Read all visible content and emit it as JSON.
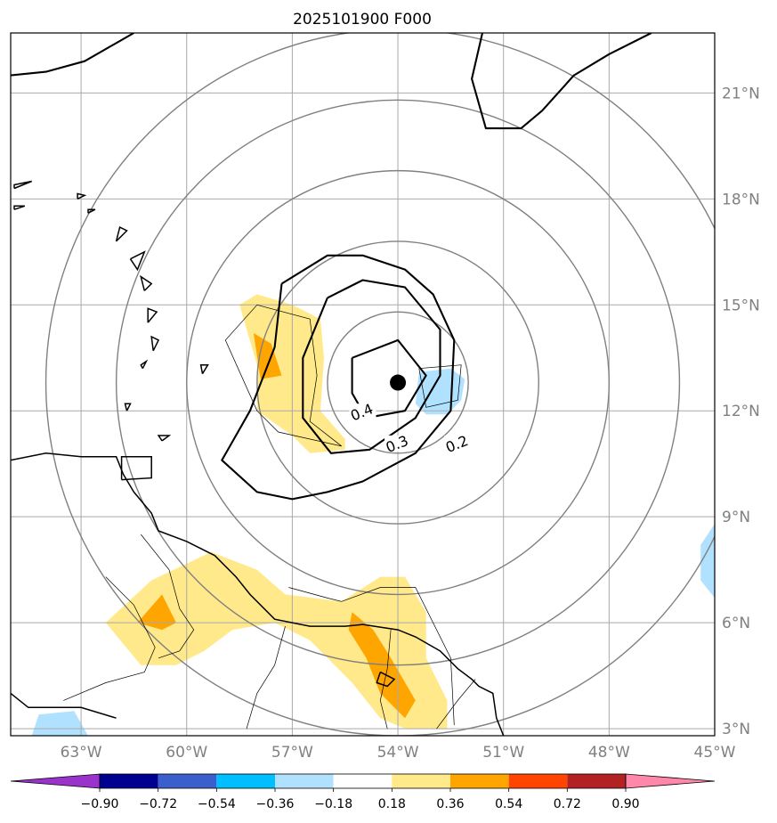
{
  "chart_data": {
    "type": "contour-map",
    "title": "2025101900 F000",
    "map": {
      "lon_range": [
        -65,
        -45
      ],
      "lat_range": [
        2.8,
        22.7
      ],
      "lon_ticks": [
        -63,
        -60,
        -57,
        -54,
        -51,
        -48,
        -45
      ],
      "lon_tick_labels": [
        "63°W",
        "60°W",
        "57°W",
        "54°W",
        "51°W",
        "48°W",
        "45°W"
      ],
      "lat_ticks": [
        3,
        6,
        9,
        12,
        15,
        18,
        21
      ],
      "lat_tick_labels": [
        "3°N",
        "6°N",
        "9°N",
        "12°N",
        "15°N",
        "18°N",
        "21°N"
      ],
      "grid": true,
      "center_marker": {
        "lon": -54.0,
        "lat": 12.8
      },
      "range_rings_deg": [
        2,
        4,
        6,
        8,
        10
      ]
    },
    "contour_lines": [
      {
        "label": "0.4",
        "label_at": [
          -55.0,
          11.9
        ],
        "points": [
          [
            -55.3,
            13.5
          ],
          [
            -54.0,
            14.0
          ],
          [
            -53.2,
            13.0
          ],
          [
            -53.8,
            12.0
          ],
          [
            -54.9,
            11.8
          ],
          [
            -55.3,
            12.5
          ],
          [
            -55.3,
            13.5
          ]
        ]
      },
      {
        "label": "0.3",
        "label_at": [
          -54.0,
          11.0
        ],
        "points": [
          [
            -56.0,
            15.2
          ],
          [
            -55.0,
            15.7
          ],
          [
            -53.8,
            15.5
          ],
          [
            -52.8,
            14.3
          ],
          [
            -52.8,
            13.0
          ],
          [
            -53.5,
            11.8
          ],
          [
            -54.8,
            10.9
          ],
          [
            -55.9,
            10.8
          ],
          [
            -56.7,
            11.8
          ],
          [
            -56.7,
            13.5
          ],
          [
            -56.0,
            15.2
          ]
        ]
      },
      {
        "label": "0.2",
        "label_at": [
          -52.3,
          11.0
        ],
        "points": [
          [
            -57.3,
            15.6
          ],
          [
            -56.0,
            16.4
          ],
          [
            -55.0,
            16.4
          ],
          [
            -53.8,
            16.0
          ],
          [
            -53.0,
            15.3
          ],
          [
            -52.4,
            14.0
          ],
          [
            -52.5,
            12.0
          ],
          [
            -53.5,
            10.8
          ],
          [
            -55.0,
            10.0
          ],
          [
            -56.0,
            9.7
          ],
          [
            -57.0,
            9.5
          ],
          [
            -58.0,
            9.7
          ],
          [
            -59.0,
            10.6
          ],
          [
            -58.2,
            12.0
          ],
          [
            -57.5,
            13.8
          ],
          [
            -57.3,
            15.6
          ]
        ]
      },
      {
        "label": "",
        "label_at": null,
        "points": [
          [
            -65.0,
            21.5
          ],
          [
            -64.0,
            21.6
          ],
          [
            -62.9,
            21.9
          ],
          [
            -61.5,
            22.7
          ]
        ]
      },
      {
        "label": "",
        "label_at": null,
        "points": [
          [
            -51.6,
            22.7
          ],
          [
            -51.9,
            21.4
          ],
          [
            -51.5,
            20.0
          ],
          [
            -50.5,
            20.0
          ],
          [
            -49.9,
            20.5
          ],
          [
            -49.0,
            21.5
          ],
          [
            -48.0,
            22.1
          ],
          [
            -46.8,
            22.7
          ]
        ]
      }
    ],
    "filled_regions": [
      {
        "range": [
          0.18,
          0.36
        ],
        "points": [
          [
            -58.0,
            15.3
          ],
          [
            -57.0,
            15.0
          ],
          [
            -56.2,
            14.6
          ],
          [
            -56.1,
            13.5
          ],
          [
            -56.2,
            12.0
          ],
          [
            -55.5,
            11.2
          ],
          [
            -55.5,
            10.9
          ],
          [
            -56.5,
            10.8
          ],
          [
            -57.0,
            11.3
          ],
          [
            -58.0,
            12.0
          ],
          [
            -58.0,
            13.3
          ],
          [
            -58.5,
            15.0
          ],
          [
            -58.0,
            15.3
          ]
        ]
      },
      {
        "range": [
          0.18,
          0.36
        ],
        "points": [
          [
            -62.3,
            6.0
          ],
          [
            -61.0,
            7.2
          ],
          [
            -59.3,
            8.0
          ],
          [
            -58.0,
            7.5
          ],
          [
            -57.2,
            6.8
          ],
          [
            -55.6,
            6.6
          ],
          [
            -54.5,
            7.3
          ],
          [
            -53.8,
            7.3
          ],
          [
            -53.2,
            6.3
          ],
          [
            -53.2,
            5.0
          ],
          [
            -52.6,
            3.8
          ],
          [
            -52.6,
            3.0
          ],
          [
            -53.8,
            3.0
          ],
          [
            -54.5,
            3.3
          ],
          [
            -55.3,
            4.3
          ],
          [
            -56.5,
            5.5
          ],
          [
            -57.5,
            6.0
          ],
          [
            -58.7,
            5.8
          ],
          [
            -59.5,
            5.2
          ],
          [
            -60.3,
            4.8
          ],
          [
            -61.3,
            4.8
          ],
          [
            -62.3,
            6.0
          ]
        ]
      },
      {
        "range": [
          0.36,
          0.54
        ],
        "points": [
          [
            -58.1,
            14.2
          ],
          [
            -57.6,
            13.9
          ],
          [
            -57.3,
            13.0
          ],
          [
            -57.9,
            12.9
          ],
          [
            -58.1,
            14.2
          ]
        ]
      },
      {
        "range": [
          0.36,
          0.54
        ],
        "points": [
          [
            -60.7,
            6.8
          ],
          [
            -60.3,
            6.0
          ],
          [
            -60.7,
            5.8
          ],
          [
            -61.4,
            6.0
          ],
          [
            -60.7,
            6.8
          ]
        ]
      },
      {
        "range": [
          0.36,
          0.54
        ],
        "points": [
          [
            -55.3,
            6.3
          ],
          [
            -54.7,
            5.8
          ],
          [
            -54.2,
            5.0
          ],
          [
            -53.5,
            3.8
          ],
          [
            -53.8,
            3.3
          ],
          [
            -54.5,
            4.0
          ],
          [
            -54.9,
            5.0
          ],
          [
            -55.4,
            5.8
          ],
          [
            -55.3,
            6.3
          ]
        ]
      },
      {
        "range": [
          -0.36,
          -0.18
        ],
        "points": [
          [
            -53.4,
            13.1
          ],
          [
            -52.5,
            13.2
          ],
          [
            -52.1,
            12.9
          ],
          [
            -52.2,
            12.3
          ],
          [
            -52.6,
            11.9
          ],
          [
            -53.2,
            11.9
          ],
          [
            -53.5,
            12.2
          ],
          [
            -53.4,
            13.1
          ]
        ]
      },
      {
        "range": [
          -0.36,
          -0.18
        ],
        "points": [
          [
            -45.0,
            8.8
          ],
          [
            -45.4,
            8.2
          ],
          [
            -45.4,
            7.2
          ],
          [
            -45.0,
            6.7
          ]
        ]
      },
      {
        "range": [
          -0.36,
          -0.18
        ],
        "points": [
          [
            -64.4,
            2.8
          ],
          [
            -64.2,
            3.4
          ],
          [
            -63.2,
            3.5
          ],
          [
            -62.8,
            2.8
          ]
        ]
      }
    ],
    "coastlines": [
      [
        [
          -65.0,
          10.6
        ],
        [
          -64.0,
          10.8
        ],
        [
          -63.0,
          10.7
        ],
        [
          -62.0,
          10.7
        ],
        [
          -61.8,
          10.2
        ],
        [
          -61.5,
          9.7
        ],
        [
          -61.0,
          9.1
        ],
        [
          -60.8,
          8.6
        ],
        [
          -60.0,
          8.3
        ],
        [
          -59.2,
          7.9
        ],
        [
          -58.6,
          7.3
        ],
        [
          -58.2,
          6.8
        ],
        [
          -57.5,
          6.1
        ],
        [
          -56.5,
          5.9
        ],
        [
          -55.5,
          5.9
        ],
        [
          -55.0,
          5.95
        ],
        [
          -54.0,
          5.8
        ],
        [
          -53.5,
          5.6
        ],
        [
          -52.8,
          5.2
        ],
        [
          -52.3,
          4.7
        ],
        [
          -51.9,
          4.4
        ],
        [
          -51.7,
          4.2
        ],
        [
          -51.3,
          4.0
        ],
        [
          -51.2,
          3.3
        ],
        [
          -51.0,
          2.8
        ]
      ],
      [
        [
          -65.0,
          4.0
        ],
        [
          -64.5,
          3.6
        ],
        [
          -63.0,
          3.6
        ],
        [
          -62.0,
          3.3
        ]
      ],
      [
        [
          -61.85,
          10.05
        ],
        [
          -61.0,
          10.1
        ],
        [
          -61.0,
          10.7
        ],
        [
          -61.85,
          10.7
        ],
        [
          -61.85,
          10.05
        ]
      ],
      [
        [
          -54.5,
          4.6
        ],
        [
          -54.1,
          4.4
        ],
        [
          -54.3,
          4.2
        ],
        [
          -54.6,
          4.3
        ],
        [
          -54.5,
          4.6
        ]
      ],
      [
        [
          -62.0,
          16.8
        ],
        [
          -61.7,
          17.1
        ],
        [
          -61.9,
          17.2
        ],
        [
          -62.0,
          16.8
        ]
      ],
      [
        [
          -61.6,
          16.3
        ],
        [
          -61.2,
          16.5
        ],
        [
          -61.4,
          16.0
        ],
        [
          -61.6,
          16.3
        ]
      ],
      [
        [
          -61.2,
          15.4
        ],
        [
          -61.0,
          15.6
        ],
        [
          -61.3,
          15.8
        ],
        [
          -61.2,
          15.4
        ]
      ],
      [
        [
          -61.1,
          14.5
        ],
        [
          -60.85,
          14.8
        ],
        [
          -61.1,
          14.9
        ],
        [
          -61.1,
          14.5
        ]
      ],
      [
        [
          -60.95,
          13.7
        ],
        [
          -60.8,
          14.0
        ],
        [
          -61.0,
          14.1
        ],
        [
          -60.95,
          13.7
        ]
      ],
      [
        [
          -59.55,
          13.05
        ],
        [
          -59.4,
          13.3
        ],
        [
          -59.6,
          13.3
        ],
        [
          -59.55,
          13.05
        ]
      ],
      [
        [
          -61.25,
          13.2
        ],
        [
          -61.15,
          13.4
        ],
        [
          -61.3,
          13.3
        ],
        [
          -61.25,
          13.2
        ]
      ],
      [
        [
          -61.7,
          12.0
        ],
        [
          -61.6,
          12.2
        ],
        [
          -61.75,
          12.2
        ],
        [
          -61.7,
          12.0
        ]
      ],
      [
        [
          -60.7,
          11.15
        ],
        [
          -60.5,
          11.3
        ],
        [
          -60.8,
          11.3
        ],
        [
          -60.7,
          11.15
        ]
      ],
      [
        [
          -62.8,
          17.6
        ],
        [
          -62.6,
          17.7
        ],
        [
          -62.8,
          17.7
        ],
        [
          -62.8,
          17.6
        ]
      ],
      [
        [
          -63.1,
          18.0
        ],
        [
          -62.9,
          18.1
        ],
        [
          -63.1,
          18.15
        ],
        [
          -63.1,
          18.0
        ]
      ],
      [
        [
          -64.9,
          17.7
        ],
        [
          -64.6,
          17.8
        ],
        [
          -64.9,
          17.8
        ],
        [
          -64.9,
          17.7
        ]
      ],
      [
        [
          -64.9,
          18.3
        ],
        [
          -64.4,
          18.5
        ],
        [
          -64.9,
          18.4
        ],
        [
          -64.9,
          18.3
        ]
      ]
    ],
    "borders": [
      [
        [
          -61.3,
          8.5
        ],
        [
          -60.5,
          7.5
        ],
        [
          -60.2,
          6.4
        ],
        [
          -59.8,
          5.8
        ],
        [
          -60.2,
          5.2
        ],
        [
          -60.8,
          5.0
        ]
      ],
      [
        [
          -57.2,
          5.9
        ],
        [
          -57.5,
          4.8
        ],
        [
          -58.0,
          4.0
        ],
        [
          -58.3,
          3.0
        ]
      ],
      [
        [
          -54.2,
          5.8
        ],
        [
          -54.3,
          4.7
        ],
        [
          -54.5,
          3.8
        ],
        [
          -54.3,
          3.0
        ]
      ],
      [
        [
          -51.8,
          4.4
        ],
        [
          -52.3,
          3.8
        ],
        [
          -52.9,
          3.0
        ]
      ],
      [
        [
          -62.3,
          7.3
        ],
        [
          -61.5,
          6.5
        ],
        [
          -60.9,
          5.3
        ],
        [
          -61.2,
          4.6
        ],
        [
          -62.3,
          4.3
        ],
        [
          -63.5,
          3.8
        ]
      ],
      [
        [
          -58.0,
          15.0
        ],
        [
          -56.5,
          14.6
        ],
        [
          -56.3,
          13.0
        ],
        [
          -56.5,
          11.7
        ],
        [
          -55.6,
          11.0
        ],
        [
          -57.4,
          11.4
        ],
        [
          -58.0,
          12.0
        ],
        [
          -58.9,
          14.0
        ],
        [
          -58.0,
          15.0
        ]
      ],
      [
        [
          -53.4,
          13.2
        ],
        [
          -52.2,
          13.3
        ],
        [
          -52.3,
          12.3
        ],
        [
          -53.2,
          12.1
        ],
        [
          -53.4,
          13.2
        ]
      ],
      [
        [
          -57.1,
          7.0
        ],
        [
          -56.0,
          6.7
        ],
        [
          -55.6,
          6.6
        ],
        [
          -54.5,
          7.0
        ],
        [
          -53.5,
          7.0
        ],
        [
          -52.5,
          5.0
        ],
        [
          -52.4,
          3.1
        ]
      ]
    ],
    "colorbar": {
      "levels": [
        -0.9,
        -0.72,
        -0.54,
        -0.36,
        -0.18,
        0.18,
        0.36,
        0.54,
        0.72,
        0.9
      ],
      "tick_labels": [
        "−0.90",
        "−0.72",
        "−0.54",
        "−0.36",
        "−0.18",
        "0.18",
        "0.36",
        "0.54",
        "0.72",
        "0.90"
      ],
      "colors": [
        "#9933cc",
        "#000090",
        "#3a5fcd",
        "#00bfff",
        "#b0e2ff",
        "#ffffff",
        "#ffe98a",
        "#ffa500",
        "#ff4500",
        "#b22222",
        "#ff88aa"
      ],
      "extend": "both"
    }
  }
}
